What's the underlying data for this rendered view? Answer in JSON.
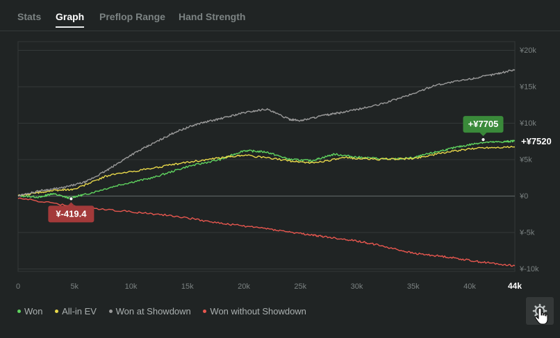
{
  "tabs": [
    {
      "label": "Stats",
      "active": false
    },
    {
      "label": "Graph",
      "active": true
    },
    {
      "label": "Preflop Range",
      "active": false
    },
    {
      "label": "Hand Strength",
      "active": false
    }
  ],
  "chart_data": {
    "type": "line",
    "xlim": [
      0,
      44000
    ],
    "ylim": [
      -10000,
      20000
    ],
    "x_ticks": [
      "0",
      "5k",
      "10k",
      "15k",
      "20k",
      "25k",
      "30k",
      "35k",
      "40k"
    ],
    "x_max_label": "44k",
    "y_ticks": [
      "¥20k",
      "¥15k",
      "¥10k",
      "¥5k",
      "¥0",
      "¥-5k",
      "¥-10k"
    ],
    "grid": true,
    "legend_position": "bottom-left",
    "series": [
      {
        "name": "Won",
        "color": "#5fd35f",
        "x": [
          0,
          2000,
          3000,
          4500,
          6000,
          9000,
          12000,
          15000,
          18000,
          20000,
          22000,
          24000,
          26000,
          28000,
          30000,
          33000,
          35000,
          37000,
          39000,
          41000,
          43000,
          44000
        ],
        "y": [
          0,
          -200,
          300,
          -300,
          200,
          1500,
          2500,
          4000,
          5000,
          6200,
          6000,
          5000,
          4800,
          5700,
          5300,
          5000,
          5200,
          6000,
          6700,
          7300,
          7400,
          7520
        ]
      },
      {
        "name": "All-in EV",
        "color": "#e8d84a",
        "x": [
          0,
          3000,
          5000,
          8000,
          12000,
          15000,
          18000,
          20000,
          24000,
          26000,
          29000,
          32000,
          35000,
          38000,
          41000,
          44000
        ],
        "y": [
          0,
          700,
          900,
          2800,
          3800,
          4600,
          5200,
          5600,
          4800,
          4500,
          5200,
          5000,
          5100,
          6000,
          6600,
          6700
        ]
      },
      {
        "name": "Won at Showdown",
        "color": "#9a9a9a",
        "x": [
          0,
          2000,
          4000,
          6000,
          8000,
          10000,
          12000,
          14000,
          16000,
          18000,
          20000,
          22000,
          24000,
          25000,
          27000,
          29000,
          32000,
          35000,
          37000,
          40000,
          42000,
          44000
        ],
        "y": [
          0,
          700,
          1100,
          1900,
          3600,
          5600,
          7200,
          8800,
          9900,
          10600,
          11400,
          11900,
          10500,
          10300,
          11000,
          11500,
          12500,
          14000,
          15200,
          16000,
          16600,
          17300
        ]
      },
      {
        "name": "Won without Showdown",
        "color": "#e8574f",
        "x": [
          0,
          5000,
          10000,
          14000,
          18000,
          22000,
          25000,
          27000,
          30000,
          32000,
          35000,
          38000,
          41000,
          44000
        ],
        "y": [
          -300,
          -1500,
          -2200,
          -2800,
          -3800,
          -4500,
          -5200,
          -5600,
          -6200,
          -6800,
          -7900,
          -8400,
          -9100,
          -9600
        ]
      }
    ],
    "annotations": [
      {
        "label": "¥-419.4",
        "x": 4700,
        "y": -419.4,
        "color": "#a33a3a"
      },
      {
        "label": "+¥7705",
        "x": 41200,
        "y": 7705,
        "color": "#3a8a3a"
      }
    ],
    "end_label": "+¥7520"
  },
  "settings": {
    "icon": "gear-icon",
    "pointer": "hand-pointer-icon"
  }
}
